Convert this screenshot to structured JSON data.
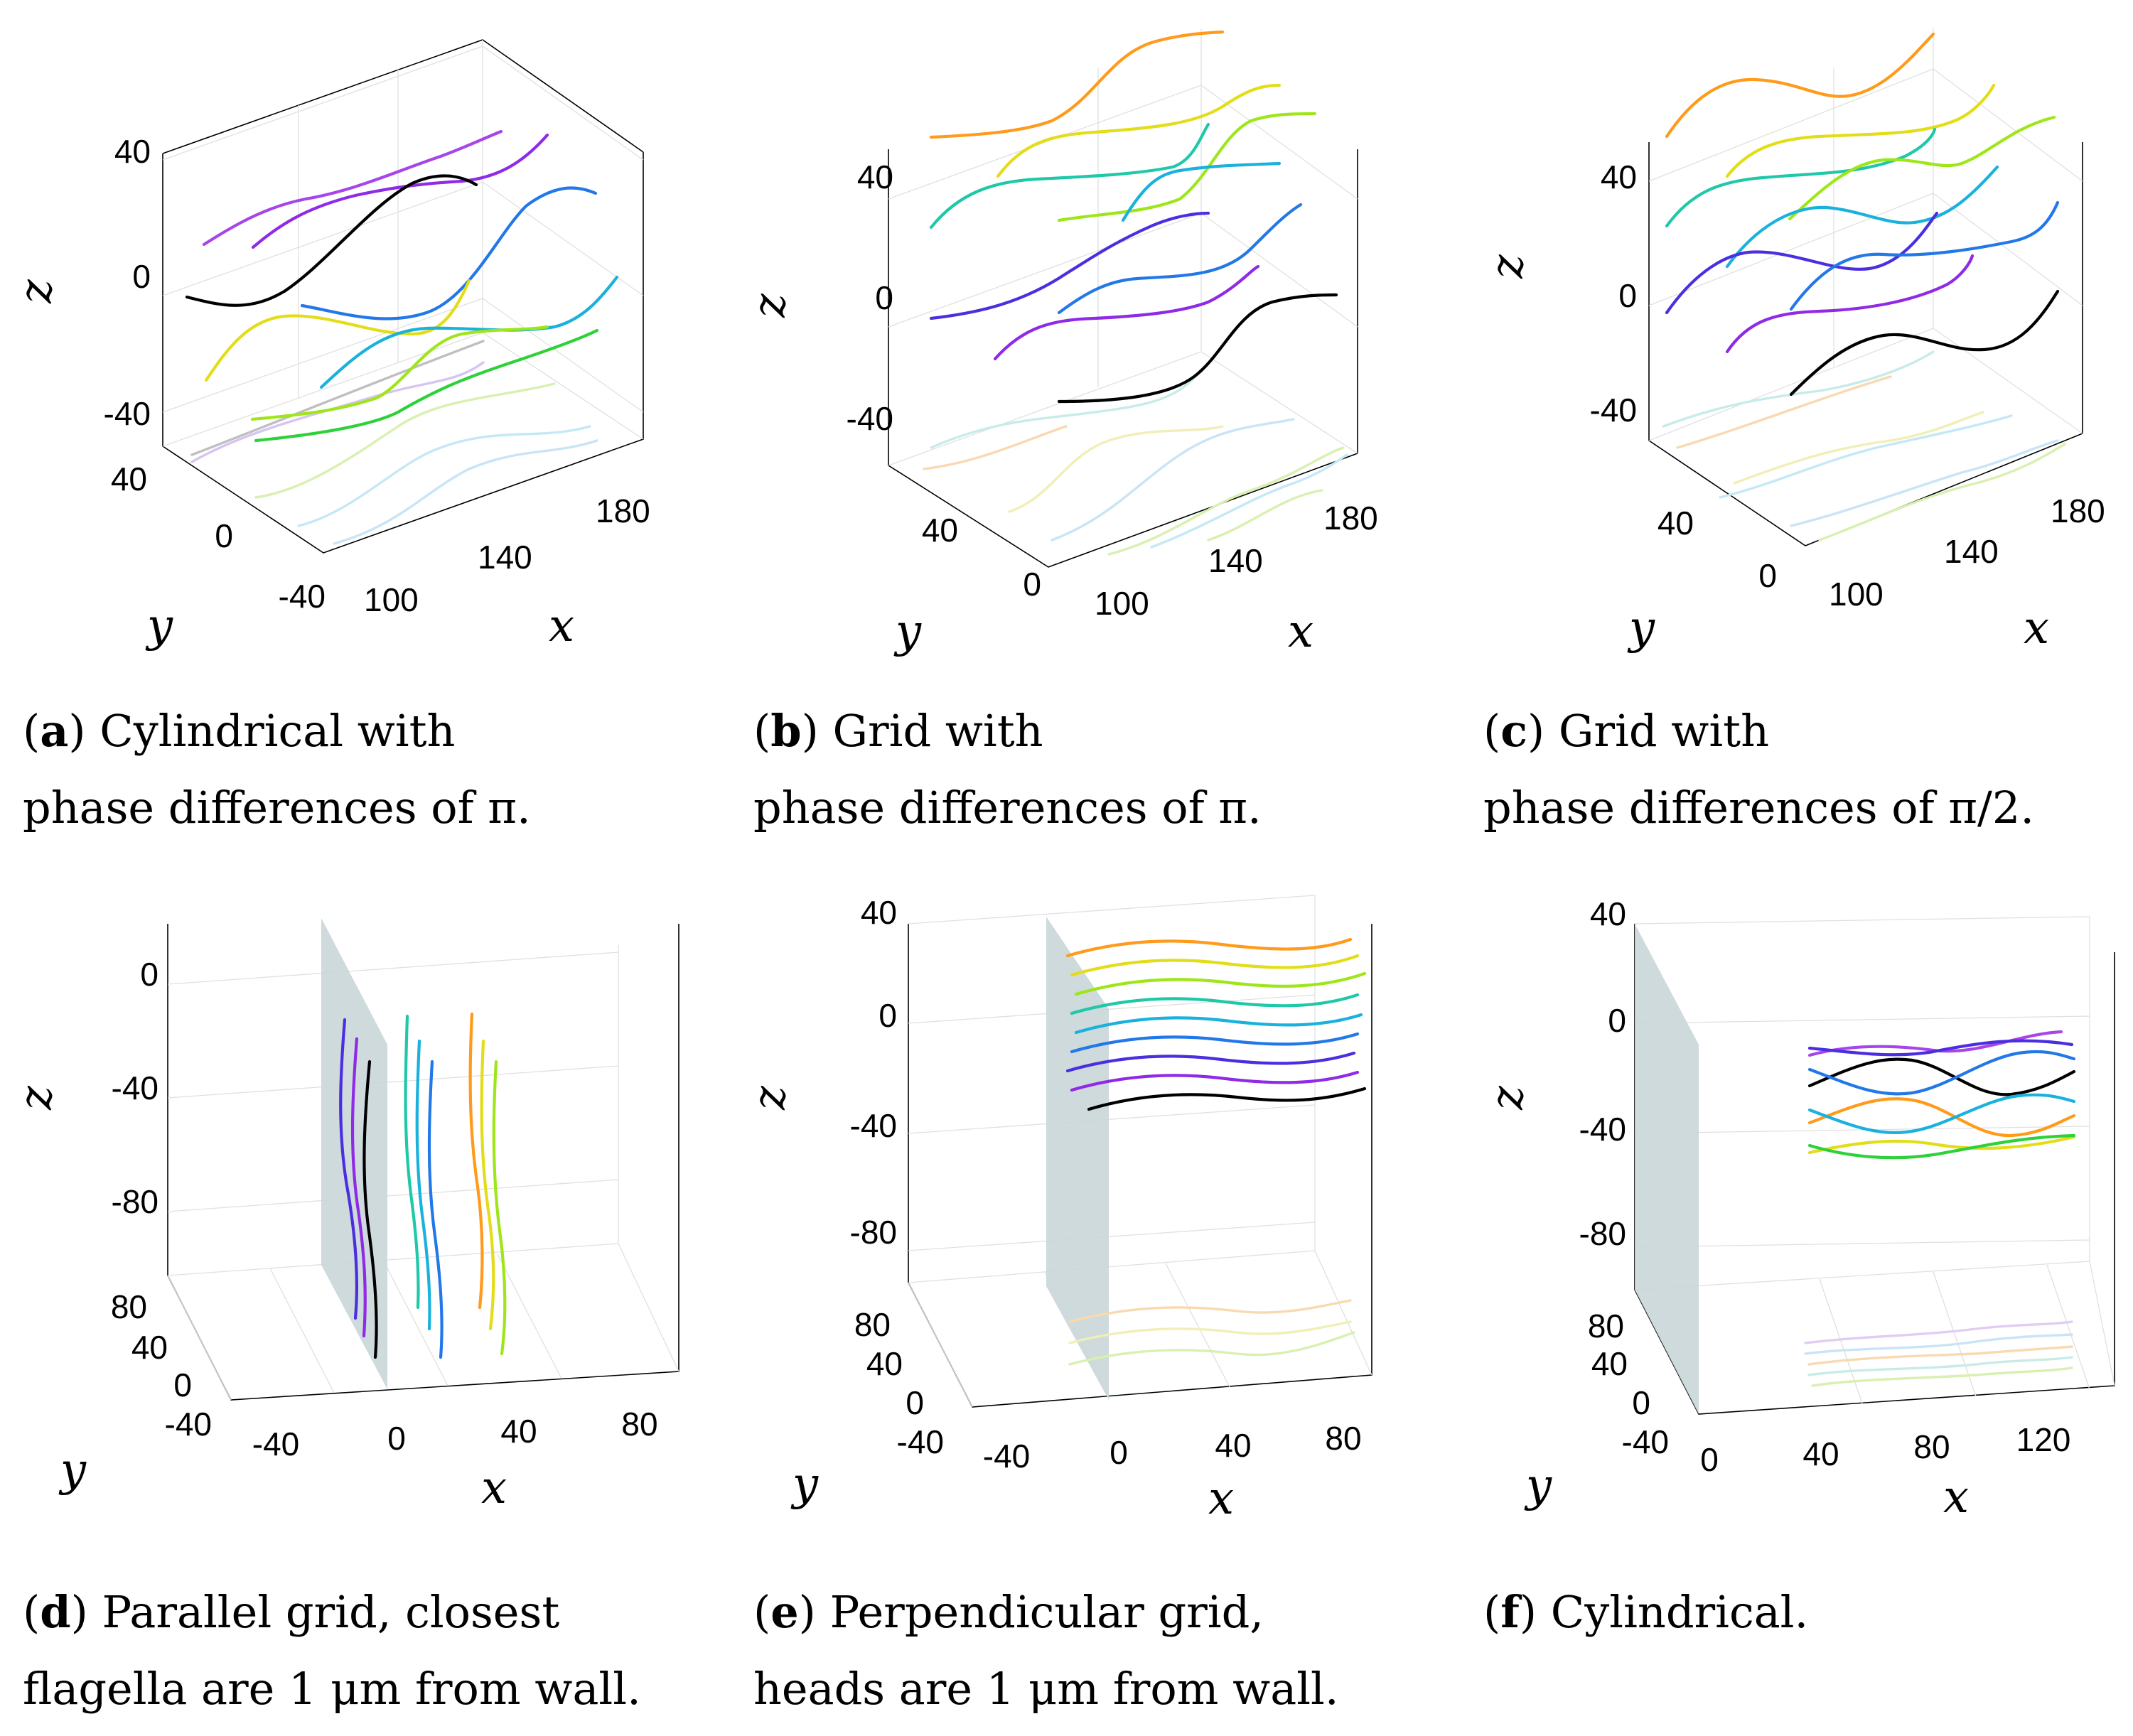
{
  "colors": {
    "orange": "#ff9a1a",
    "yellow": "#e3dd19",
    "lime": "#9ee619",
    "green": "#2ed13a",
    "teal": "#1ec8a8",
    "cyan": "#1ab1dd",
    "blue": "#2278e8",
    "indigo": "#4b2ee0",
    "purple": "#8f2ae6",
    "violet": "#a646ea",
    "black": "#000000",
    "gray": "#a8a8a8",
    "wall": "#c9d6d8"
  },
  "chart_data": [
    {
      "id": "a",
      "type": "line",
      "projection": "3d",
      "caption": {
        "letter": "a",
        "line1": "Cylindrical with",
        "line2": "phase differences of π."
      },
      "xlabel": "x",
      "ylabel": "y",
      "zlabel": "z",
      "x_ticks": [
        "100",
        "140",
        "180"
      ],
      "y_ticks": [
        "-40",
        "0",
        "40"
      ],
      "z_ticks": [
        "-40",
        "0",
        "40"
      ],
      "series": [
        {
          "name": "purple-1",
          "color": "violet",
          "x0": 100,
          "y": 20,
          "z": 20,
          "amp": 10,
          "phase": 0.0
        },
        {
          "name": "purple-2",
          "color": "purple",
          "x0": 104,
          "y": 35,
          "z": 18,
          "amp": 10,
          "phase": 3.14
        },
        {
          "name": "black",
          "color": "black",
          "x0": 100,
          "y": 0,
          "z": -18,
          "amp": 22,
          "phase": 0.0
        },
        {
          "name": "blue",
          "color": "blue",
          "x0": 110,
          "y": 0,
          "z": -28,
          "amp": 22,
          "phase": 3.14
        },
        {
          "name": "yellow",
          "color": "yellow",
          "x0": 100,
          "y": -10,
          "z": -30,
          "amp": 14,
          "phase": 0.0
        },
        {
          "name": "cyan",
          "color": "cyan",
          "x0": 112,
          "y": -20,
          "z": -40,
          "amp": 14,
          "phase": 3.14
        },
        {
          "name": "lime",
          "color": "lime",
          "x0": 110,
          "y": -30,
          "z": -48,
          "amp": 10,
          "phase": 0.0
        },
        {
          "name": "green",
          "color": "green",
          "x0": 105,
          "y": -40,
          "z": -55,
          "amp": 10,
          "phase": 3.14
        }
      ]
    },
    {
      "id": "b",
      "type": "line",
      "projection": "3d",
      "caption": {
        "letter": "b",
        "line1": "Grid with",
        "line2": "phase differences of π."
      },
      "xlabel": "x",
      "ylabel": "y",
      "zlabel": "z",
      "x_ticks": [
        "100",
        "140",
        "180"
      ],
      "y_ticks": [
        "0",
        "40"
      ],
      "z_ticks": [
        "-40",
        "0",
        "40"
      ],
      "series": [
        {
          "name": "orange",
          "color": "orange",
          "x0": 100,
          "y": 40,
          "z": 50,
          "amp": 14,
          "phase": 0.0
        },
        {
          "name": "yellow",
          "color": "yellow",
          "x0": 118,
          "y": 40,
          "z": 40,
          "amp": 14,
          "phase": 3.14
        },
        {
          "name": "teal",
          "color": "teal",
          "x0": 100,
          "y": 40,
          "z": 28,
          "amp": 14,
          "phase": 0.0
        },
        {
          "name": "lime",
          "color": "lime",
          "x0": 120,
          "y": 30,
          "z": 22,
          "amp": 14,
          "phase": 3.14
        },
        {
          "name": "cyan",
          "color": "cyan",
          "x0": 118,
          "y": 30,
          "z": 10,
          "amp": 14,
          "phase": 0.0
        },
        {
          "name": "indigo",
          "color": "indigo",
          "x0": 100,
          "y": 20,
          "z": -5,
          "amp": 14,
          "phase": 3.14
        },
        {
          "name": "blue",
          "color": "blue",
          "x0": 118,
          "y": 20,
          "z": -10,
          "amp": 14,
          "phase": 0.0
        },
        {
          "name": "purple",
          "color": "purple",
          "x0": 108,
          "y": 10,
          "z": -20,
          "amp": 14,
          "phase": 3.14
        },
        {
          "name": "black",
          "color": "black",
          "x0": 120,
          "y": 0,
          "z": -40,
          "amp": 14,
          "phase": 0.0
        }
      ]
    },
    {
      "id": "c",
      "type": "line",
      "projection": "3d",
      "caption": {
        "letter": "c",
        "line1": "Grid with",
        "line2": "phase differences of π/2."
      },
      "xlabel": "x",
      "ylabel": "y",
      "zlabel": "z",
      "x_ticks": [
        "100",
        "140",
        "180"
      ],
      "y_ticks": [
        "0",
        "40"
      ],
      "z_ticks": [
        "-40",
        "0",
        "40"
      ],
      "series": [
        {
          "name": "orange",
          "color": "orange",
          "x0": 100,
          "y": 40,
          "z": 55,
          "amp": 12,
          "phase": 0.0
        },
        {
          "name": "yellow",
          "color": "yellow",
          "x0": 118,
          "y": 40,
          "z": 40,
          "amp": 12,
          "phase": 1.57
        },
        {
          "name": "teal",
          "color": "teal",
          "x0": 100,
          "y": 40,
          "z": 28,
          "amp": 12,
          "phase": 3.14
        },
        {
          "name": "lime",
          "color": "lime",
          "x0": 118,
          "y": 30,
          "z": 22,
          "amp": 12,
          "phase": 4.71
        },
        {
          "name": "cyan",
          "color": "cyan",
          "x0": 115,
          "y": 30,
          "z": 10,
          "amp": 12,
          "phase": 0.0
        },
        {
          "name": "indigo",
          "color": "indigo",
          "x0": 100,
          "y": 20,
          "z": -5,
          "amp": 12,
          "phase": 1.57
        },
        {
          "name": "blue",
          "color": "blue",
          "x0": 118,
          "y": 20,
          "z": -10,
          "amp": 12,
          "phase": 3.14
        },
        {
          "name": "purple",
          "color": "purple",
          "x0": 108,
          "y": 10,
          "z": -20,
          "amp": 12,
          "phase": 4.71
        },
        {
          "name": "black",
          "color": "black",
          "x0": 120,
          "y": 0,
          "z": -40,
          "amp": 12,
          "phase": 0.0
        }
      ]
    },
    {
      "id": "d",
      "type": "line",
      "projection": "3d",
      "caption": {
        "letter": "d",
        "line1": "Parallel grid, closest",
        "line2": "flagella are 1 μm from wall."
      },
      "xlabel": "x",
      "ylabel": "y",
      "zlabel": "z",
      "x_ticks": [
        "-40",
        "0",
        "40",
        "80"
      ],
      "y_ticks": [
        "-40",
        "0",
        "40",
        "80"
      ],
      "z_ticks": [
        "-80",
        "-40",
        "0"
      ],
      "wall": true,
      "series": [
        {
          "name": "indigo",
          "color": "indigo",
          "x": 2,
          "y": 5,
          "amp": 3
        },
        {
          "name": "purple",
          "color": "purple",
          "x": 6,
          "y": 5,
          "amp": 3
        },
        {
          "name": "black",
          "color": "black",
          "x": 10,
          "y": 5,
          "amp": 3
        },
        {
          "name": "teal",
          "color": "teal",
          "x": 20,
          "y": 5,
          "amp": 3
        },
        {
          "name": "cyan",
          "color": "cyan",
          "x": 24,
          "y": 5,
          "amp": 3
        },
        {
          "name": "blue",
          "color": "blue",
          "x": 28,
          "y": 5,
          "amp": 3
        },
        {
          "name": "orange",
          "color": "orange",
          "x": 40,
          "y": 5,
          "amp": 3
        },
        {
          "name": "yellow",
          "color": "yellow",
          "x": 44,
          "y": 5,
          "amp": 3
        },
        {
          "name": "lime",
          "color": "lime",
          "x": 48,
          "y": 5,
          "amp": 3
        }
      ]
    },
    {
      "id": "e",
      "type": "line",
      "projection": "3d",
      "caption": {
        "letter": "e",
        "line1": "Perpendicular grid,",
        "line2": "heads are 1 μm from wall."
      },
      "xlabel": "x",
      "ylabel": "y",
      "zlabel": "z",
      "x_ticks": [
        "-40",
        "0",
        "40",
        "80"
      ],
      "y_ticks": [
        "-40",
        "0",
        "40",
        "80"
      ],
      "z_ticks": [
        "-80",
        "-40",
        "0",
        "40"
      ],
      "wall": true,
      "series": [
        {
          "name": "orange",
          "color": "orange",
          "z": 30,
          "amp": 3
        },
        {
          "name": "yellow",
          "color": "yellow",
          "z": 24,
          "amp": 3
        },
        {
          "name": "lime",
          "color": "lime",
          "z": 18,
          "amp": 3
        },
        {
          "name": "teal",
          "color": "teal",
          "z": 12,
          "amp": 3
        },
        {
          "name": "cyan",
          "color": "cyan",
          "z": 6,
          "amp": 3
        },
        {
          "name": "blue",
          "color": "blue",
          "z": 0,
          "amp": 3
        },
        {
          "name": "indigo",
          "color": "indigo",
          "z": -6,
          "amp": 3
        },
        {
          "name": "purple",
          "color": "purple",
          "z": -12,
          "amp": 3
        },
        {
          "name": "black",
          "color": "black",
          "z": -18,
          "amp": 3
        }
      ]
    },
    {
      "id": "f",
      "type": "line",
      "projection": "3d",
      "caption": {
        "letter": "f",
        "line1": "Cylindrical.",
        "line2": ""
      },
      "xlabel": "x",
      "ylabel": "y",
      "zlabel": "z",
      "x_ticks": [
        "0",
        "40",
        "80",
        "120"
      ],
      "y_ticks": [
        "-40",
        "0",
        "40",
        "80"
      ],
      "z_ticks": [
        "-80",
        "-40",
        "0",
        "40"
      ],
      "wall": true,
      "series": [
        {
          "name": "purple",
          "color": "violet",
          "z": -6,
          "amp": 4,
          "phase": 0.0
        },
        {
          "name": "indigo",
          "color": "indigo",
          "z": -8,
          "amp": 4,
          "phase": 3.14
        },
        {
          "name": "black",
          "color": "black",
          "z": -16,
          "amp": 6,
          "phase": 0.0
        },
        {
          "name": "blue",
          "color": "blue",
          "z": -18,
          "amp": 6,
          "phase": 3.14
        },
        {
          "name": "orange",
          "color": "orange",
          "z": -30,
          "amp": 6,
          "phase": 0.0
        },
        {
          "name": "cyan",
          "color": "cyan",
          "z": -32,
          "amp": 6,
          "phase": 3.14
        },
        {
          "name": "yellow",
          "color": "yellow",
          "z": -40,
          "amp": 3,
          "phase": 0.0
        },
        {
          "name": "green",
          "color": "green",
          "z": -42,
          "amp": 3,
          "phase": 3.14
        }
      ]
    }
  ]
}
